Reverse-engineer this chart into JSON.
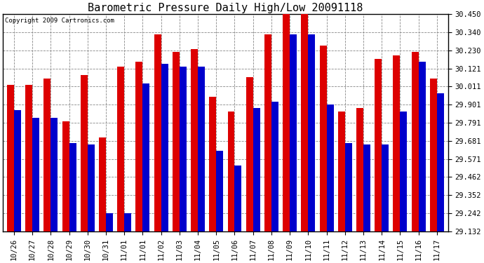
{
  "title": "Barometric Pressure Daily High/Low 20091118",
  "copyright": "Copyright 2009 Cartronics.com",
  "background_color": "#ffffff",
  "plot_bg_color": "#ffffff",
  "grid_color": "#888888",
  "labels": [
    "10/26",
    "10/27",
    "10/28",
    "10/29",
    "10/30",
    "10/31",
    "11/01",
    "11/01",
    "11/02",
    "11/03",
    "11/04",
    "11/05",
    "11/06",
    "11/07",
    "11/08",
    "11/09",
    "11/10",
    "11/11",
    "11/12",
    "11/13",
    "11/14",
    "11/15",
    "11/16",
    "11/17"
  ],
  "highs": [
    30.02,
    30.02,
    30.06,
    29.8,
    30.08,
    29.7,
    30.13,
    30.16,
    30.33,
    30.22,
    30.24,
    29.95,
    29.86,
    30.07,
    30.33,
    30.45,
    30.45,
    30.26,
    29.86,
    29.88,
    30.18,
    30.2,
    30.22,
    30.06
  ],
  "lows": [
    29.87,
    29.82,
    29.82,
    29.67,
    29.66,
    29.24,
    29.24,
    30.03,
    30.15,
    30.13,
    30.13,
    29.62,
    29.53,
    29.88,
    29.92,
    30.33,
    30.33,
    29.9,
    29.67,
    29.66,
    29.66,
    29.86,
    30.16,
    29.97
  ],
  "high_color": "#dd0000",
  "low_color": "#0000cc",
  "ylim_min": 29.132,
  "ylim_max": 30.45,
  "yticks": [
    29.132,
    29.242,
    29.352,
    29.462,
    29.571,
    29.681,
    29.791,
    29.901,
    30.011,
    30.121,
    30.23,
    30.34,
    30.45
  ],
  "bar_width": 0.38,
  "title_fontsize": 11,
  "tick_fontsize": 7.5,
  "copyright_fontsize": 6.5
}
